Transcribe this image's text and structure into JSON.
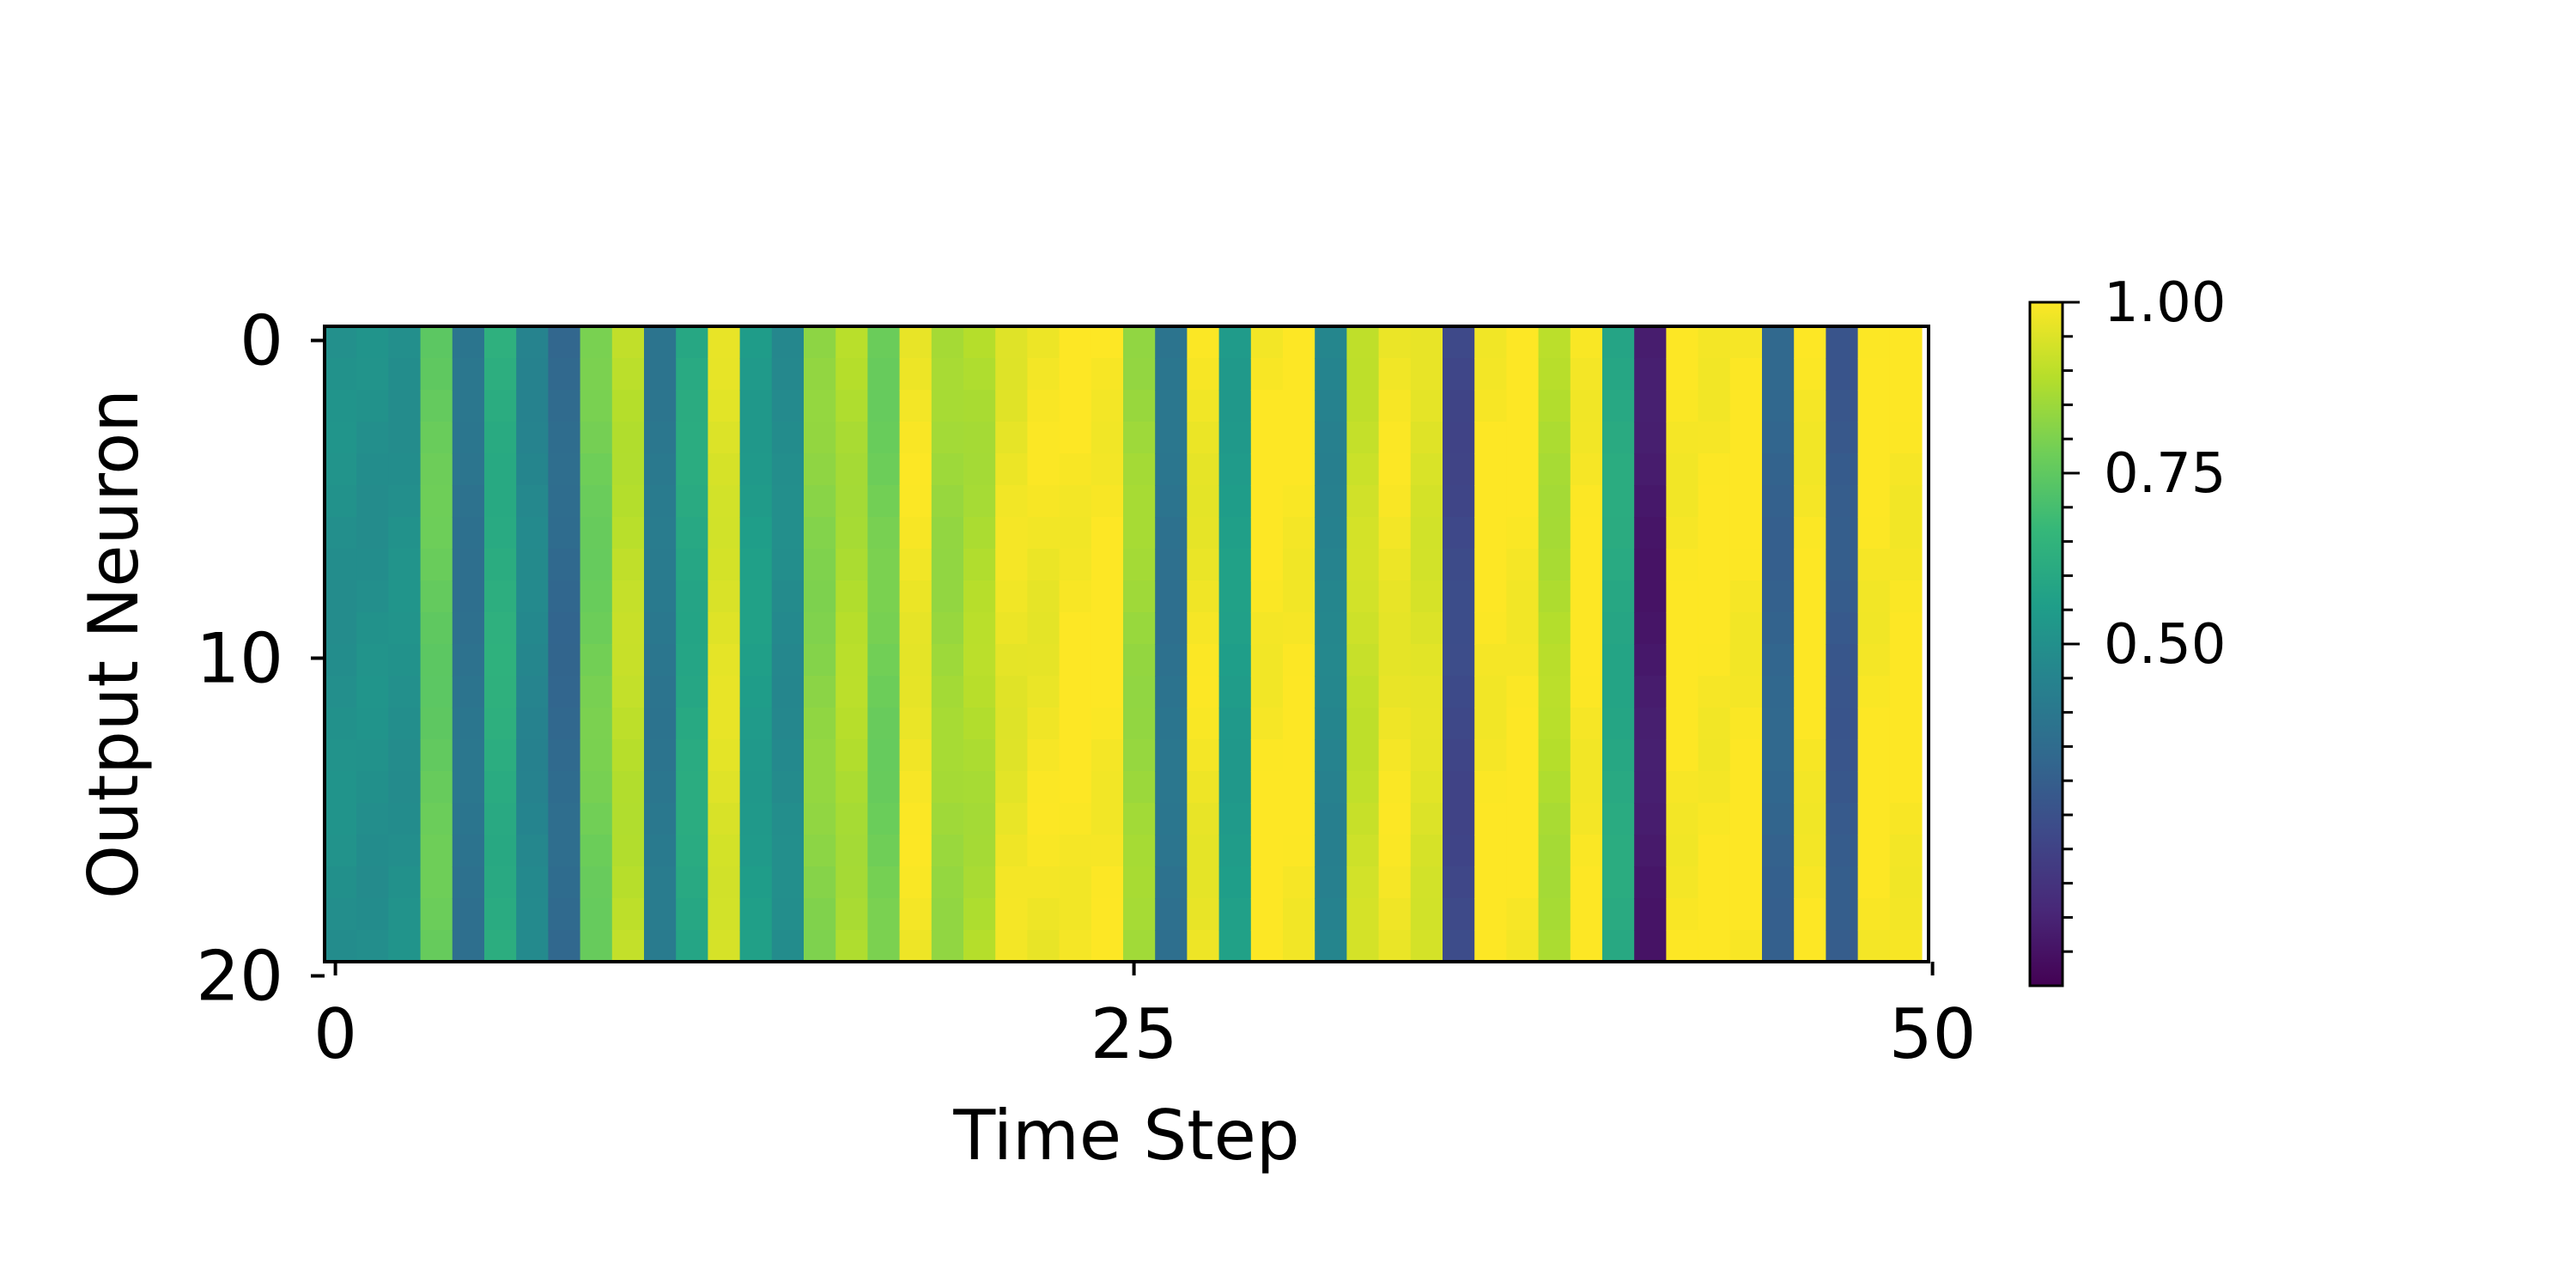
{
  "chart_data": {
    "type": "heatmap",
    "xlabel": "Time Step",
    "ylabel": "Output Neuron",
    "x_ticks": [
      "0",
      "25",
      "50"
    ],
    "x_tick_values": [
      0,
      25,
      50
    ],
    "y_ticks": [
      "0",
      "10",
      "20"
    ],
    "y_tick_values": [
      0,
      10,
      20
    ],
    "n_time_steps": 50,
    "n_neurons": 20,
    "column_values": [
      0.5,
      0.5,
      0.5,
      0.76,
      0.38,
      0.62,
      0.46,
      0.34,
      0.78,
      0.9,
      0.4,
      0.6,
      0.95,
      0.55,
      0.48,
      0.82,
      0.88,
      0.78,
      0.98,
      0.85,
      0.88,
      0.97,
      0.98,
      1.0,
      1.0,
      0.85,
      0.38,
      0.98,
      0.55,
      1.0,
      1.0,
      0.45,
      0.92,
      0.98,
      0.95,
      0.22,
      1.0,
      1.0,
      0.88,
      1.0,
      0.6,
      0.07,
      1.0,
      1.0,
      1.0,
      0.32,
      1.0,
      0.28,
      1.0,
      1.0
    ],
    "colorbar": {
      "colormap": "viridis",
      "min": 0.0,
      "max": 1.0,
      "tick_labels": [
        "1.00",
        "0.75",
        "0.50"
      ],
      "tick_values": [
        1.0,
        0.75,
        0.5
      ]
    }
  }
}
